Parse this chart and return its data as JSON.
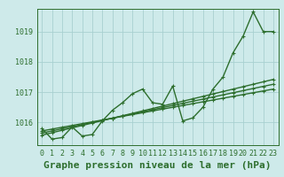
{
  "title": "Graphe pression niveau de la mer (hPa)",
  "x_labels": [
    "0",
    "1",
    "2",
    "3",
    "4",
    "5",
    "6",
    "7",
    "8",
    "9",
    "10",
    "11",
    "12",
    "13",
    "14",
    "15",
    "16",
    "17",
    "18",
    "19",
    "20",
    "21",
    "22",
    "23"
  ],
  "ylim": [
    1015.25,
    1019.75
  ],
  "yticks": [
    1016,
    1017,
    1018,
    1019
  ],
  "background_color": "#ceeaea",
  "grid_color": "#a8d0d0",
  "line_color": "#2d6e2d",
  "actual_series": [
    1015.8,
    1015.45,
    1015.5,
    1015.85,
    1015.55,
    1015.6,
    1016.05,
    1016.4,
    1016.65,
    1016.95,
    1017.1,
    1016.65,
    1016.6,
    1017.2,
    1016.05,
    1016.15,
    1016.5,
    1017.1,
    1017.5,
    1018.3,
    1018.85,
    1019.65,
    1019.0,
    1019.0
  ],
  "trend1": [
    1015.72,
    1015.78,
    1015.84,
    1015.9,
    1015.96,
    1016.02,
    1016.08,
    1016.14,
    1016.2,
    1016.26,
    1016.32,
    1016.38,
    1016.44,
    1016.5,
    1016.56,
    1016.62,
    1016.68,
    1016.74,
    1016.8,
    1016.86,
    1016.92,
    1016.98,
    1017.04,
    1017.1
  ],
  "trend2": [
    1015.65,
    1015.72,
    1015.79,
    1015.86,
    1015.93,
    1016.0,
    1016.07,
    1016.14,
    1016.21,
    1016.28,
    1016.35,
    1016.42,
    1016.49,
    1016.56,
    1016.63,
    1016.7,
    1016.77,
    1016.84,
    1016.91,
    1016.98,
    1017.05,
    1017.12,
    1017.19,
    1017.26
  ],
  "trend3": [
    1015.58,
    1015.66,
    1015.74,
    1015.82,
    1015.9,
    1015.98,
    1016.06,
    1016.14,
    1016.22,
    1016.3,
    1016.38,
    1016.46,
    1016.54,
    1016.62,
    1016.7,
    1016.78,
    1016.86,
    1016.94,
    1017.02,
    1017.1,
    1017.18,
    1017.26,
    1017.34,
    1017.42
  ],
  "marker": "+",
  "markersize": 3,
  "linewidth": 1.0,
  "title_fontsize": 8,
  "tick_fontsize": 6
}
